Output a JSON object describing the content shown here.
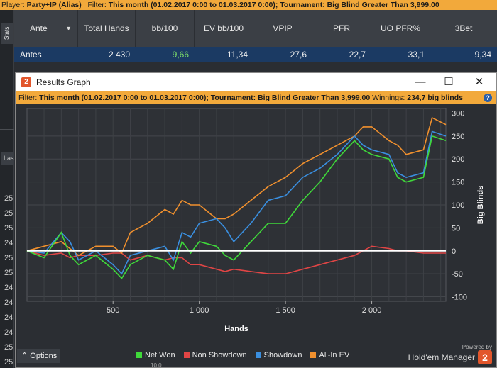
{
  "topbar": {
    "player_label": "Player:",
    "player": "Party+IP (Alias)",
    "filter_label": "Filter:",
    "filter": "This month (01.02.2017 0:00 to 01.03.2017 0:00); Tournament: Big Blind Greater Than 3,999.00"
  },
  "stats_tab": "Stats",
  "stats_table": {
    "headers": [
      "Ante",
      "Total Hands",
      "bb/100",
      "EV bb/100",
      "VPIP",
      "PFR",
      "UO PFR%",
      "3Bet"
    ],
    "row": [
      "Antes",
      "2 430",
      "9,66",
      "11,34",
      "27,6",
      "22,7",
      "33,1",
      "9,34"
    ]
  },
  "background": {
    "tab_label": "Las",
    "row_numbers": [
      "25",
      "25",
      "25",
      "24",
      "25",
      "25",
      "24",
      "24",
      "24",
      "24",
      "25",
      "25"
    ]
  },
  "window": {
    "title": "Results Graph",
    "icon_text": "2",
    "minimize": "—",
    "maximize": "☐",
    "close": "✕",
    "filter_label": "Filter:",
    "filter": "This month (01.02.2017 0:00 to 01.03.2017 0:00); Tournament: Big Blind Greater Than 3,999.00",
    "winnings_label": "Winnings:",
    "winnings": "234,7 big blinds",
    "help": "?"
  },
  "colors": {
    "net_won": "#3fd93a",
    "non_showdown": "#e04545",
    "showdown": "#3a8fe0",
    "all_in_ev": "#f0902e",
    "zero_line": "#ffffff",
    "accent": "#f2a93b"
  },
  "chart_data": {
    "type": "line",
    "xlabel": "Hands",
    "ylabel": "Big Blinds",
    "xlim": [
      1,
      2430
    ],
    "ylim": [
      -110,
      310
    ],
    "x_ticks": [
      500,
      1000,
      1500,
      2000
    ],
    "x_tick_labels": [
      "500",
      "1 000",
      "1 500",
      "2 000"
    ],
    "y_ticks": [
      300,
      250,
      200,
      150,
      100,
      50,
      0,
      -50,
      -100
    ],
    "y_tick_labels": [
      "300",
      "250",
      "200",
      "150",
      "100",
      "50",
      "0",
      "-50",
      "-100"
    ],
    "grid": true,
    "legend_position": "bottom",
    "x": [
      0,
      100,
      200,
      250,
      300,
      400,
      500,
      550,
      600,
      700,
      800,
      850,
      900,
      950,
      1000,
      1100,
      1150,
      1200,
      1300,
      1400,
      1500,
      1600,
      1700,
      1800,
      1900,
      1950,
      2000,
      2100,
      2150,
      2200,
      2300,
      2350,
      2430
    ],
    "series": [
      {
        "name": "Net Won",
        "values": [
          0,
          -15,
          40,
          -10,
          -30,
          -10,
          -40,
          -60,
          -30,
          -10,
          -20,
          -40,
          20,
          -5,
          20,
          10,
          -10,
          -20,
          20,
          60,
          60,
          110,
          150,
          200,
          240,
          220,
          210,
          200,
          160,
          150,
          160,
          250,
          240
        ]
      },
      {
        "name": "Non Showdown",
        "values": [
          0,
          -10,
          -5,
          -15,
          -10,
          -10,
          -5,
          -5,
          -20,
          -10,
          -20,
          -15,
          -15,
          -30,
          -30,
          -40,
          -45,
          -40,
          -45,
          -50,
          -50,
          -40,
          -30,
          -20,
          -10,
          0,
          10,
          5,
          0,
          0,
          -5,
          -5,
          -5
        ]
      },
      {
        "name": "Showdown",
        "values": [
          0,
          -5,
          40,
          20,
          -20,
          0,
          -30,
          -50,
          -10,
          0,
          10,
          -20,
          40,
          30,
          60,
          70,
          50,
          20,
          60,
          110,
          120,
          160,
          180,
          210,
          250,
          230,
          220,
          210,
          170,
          160,
          170,
          260,
          250
        ]
      },
      {
        "name": "All-In EV",
        "values": [
          0,
          10,
          20,
          5,
          -10,
          10,
          10,
          -5,
          40,
          60,
          90,
          80,
          110,
          100,
          100,
          70,
          70,
          80,
          110,
          140,
          160,
          190,
          210,
          230,
          250,
          270,
          270,
          240,
          230,
          210,
          220,
          290,
          275
        ]
      }
    ]
  },
  "footer": {
    "options": "Options",
    "options_icon": "chevron-up-icon",
    "powered_by": "Powered by",
    "brand": "Hold'em Manager",
    "brand_logo": "2",
    "bottom_text": "10 0"
  }
}
